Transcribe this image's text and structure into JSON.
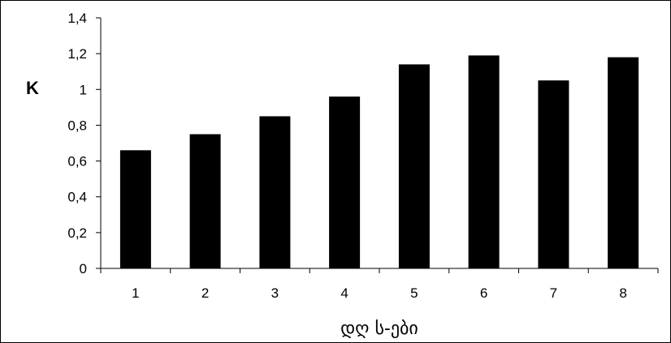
{
  "chart_data": {
    "type": "bar",
    "categories": [
      "1",
      "2",
      "3",
      "4",
      "5",
      "6",
      "7",
      "8"
    ],
    "values": [
      0.66,
      0.75,
      0.85,
      0.96,
      1.14,
      1.19,
      1.05,
      1.18
    ],
    "yticks": [
      "0",
      "0,2",
      "0,4",
      "0,6",
      "0,8",
      "1",
      "1,2",
      "1,4"
    ],
    "ylim": [
      0,
      1.4
    ],
    "title": "",
    "xlabel": "დღ ს-ები",
    "ylabel": "K",
    "grid": false,
    "bar_color": "#000000"
  }
}
